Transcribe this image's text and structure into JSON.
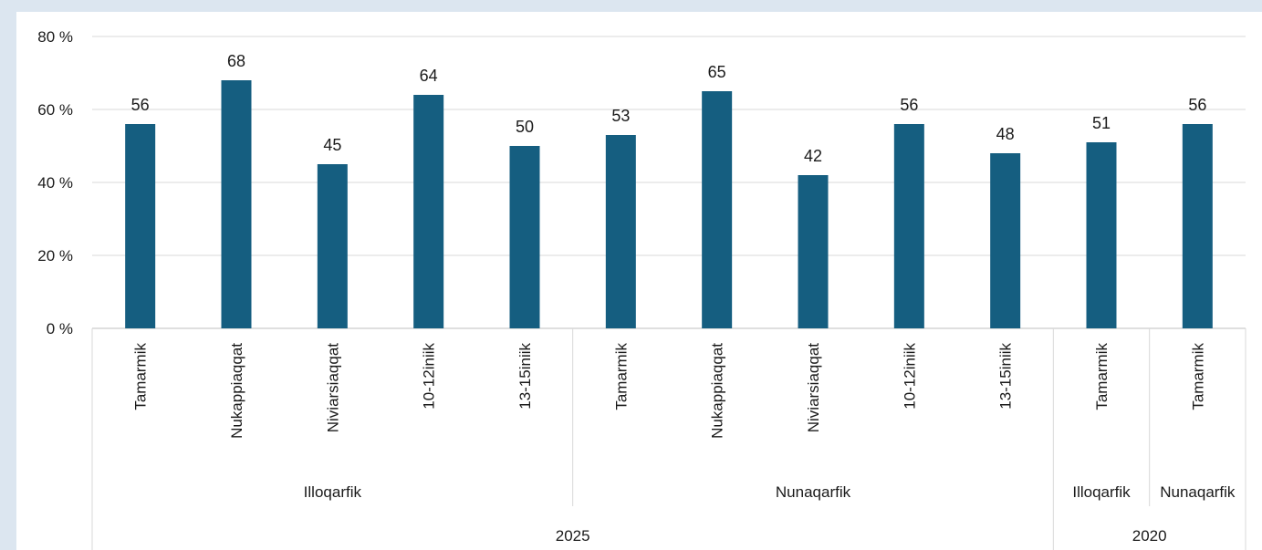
{
  "chart_data": {
    "type": "bar",
    "y_tick_labels": [
      "0 %",
      "20 %",
      "40 %",
      "60 %",
      "80 %"
    ],
    "ylim": [
      0,
      80
    ],
    "grid": true,
    "bar_color": "#155e80",
    "categories": [
      "Tamarmik",
      "Nukappiaqqat",
      "Niviarsiaqqat",
      "10-12iniik",
      "13-15iniik",
      "Tamarmik",
      "Nukappiaqqat",
      "Niviarsiaqqat",
      "10-12iniik",
      "13-15iniik",
      "Tamarmik",
      "Tamarmik"
    ],
    "values": [
      56,
      68,
      45,
      64,
      50,
      53,
      65,
      42,
      56,
      48,
      51,
      56
    ],
    "value_labels": [
      "56",
      "68",
      "45",
      "64",
      "50",
      "53",
      "65",
      "42",
      "56",
      "48",
      "51",
      "56"
    ],
    "level2_groups": [
      {
        "label": "Illoqarfik",
        "start": 0,
        "end": 4
      },
      {
        "label": "Nunaqarfik",
        "start": 5,
        "end": 9
      },
      {
        "label": "Illoqarfik",
        "start": 10,
        "end": 10
      },
      {
        "label": "Nunaqarfik",
        "start": 11,
        "end": 11
      }
    ],
    "level3_groups": [
      {
        "label": "2025",
        "start": 0,
        "end": 9
      },
      {
        "label": "2020",
        "start": 10,
        "end": 11
      }
    ]
  }
}
